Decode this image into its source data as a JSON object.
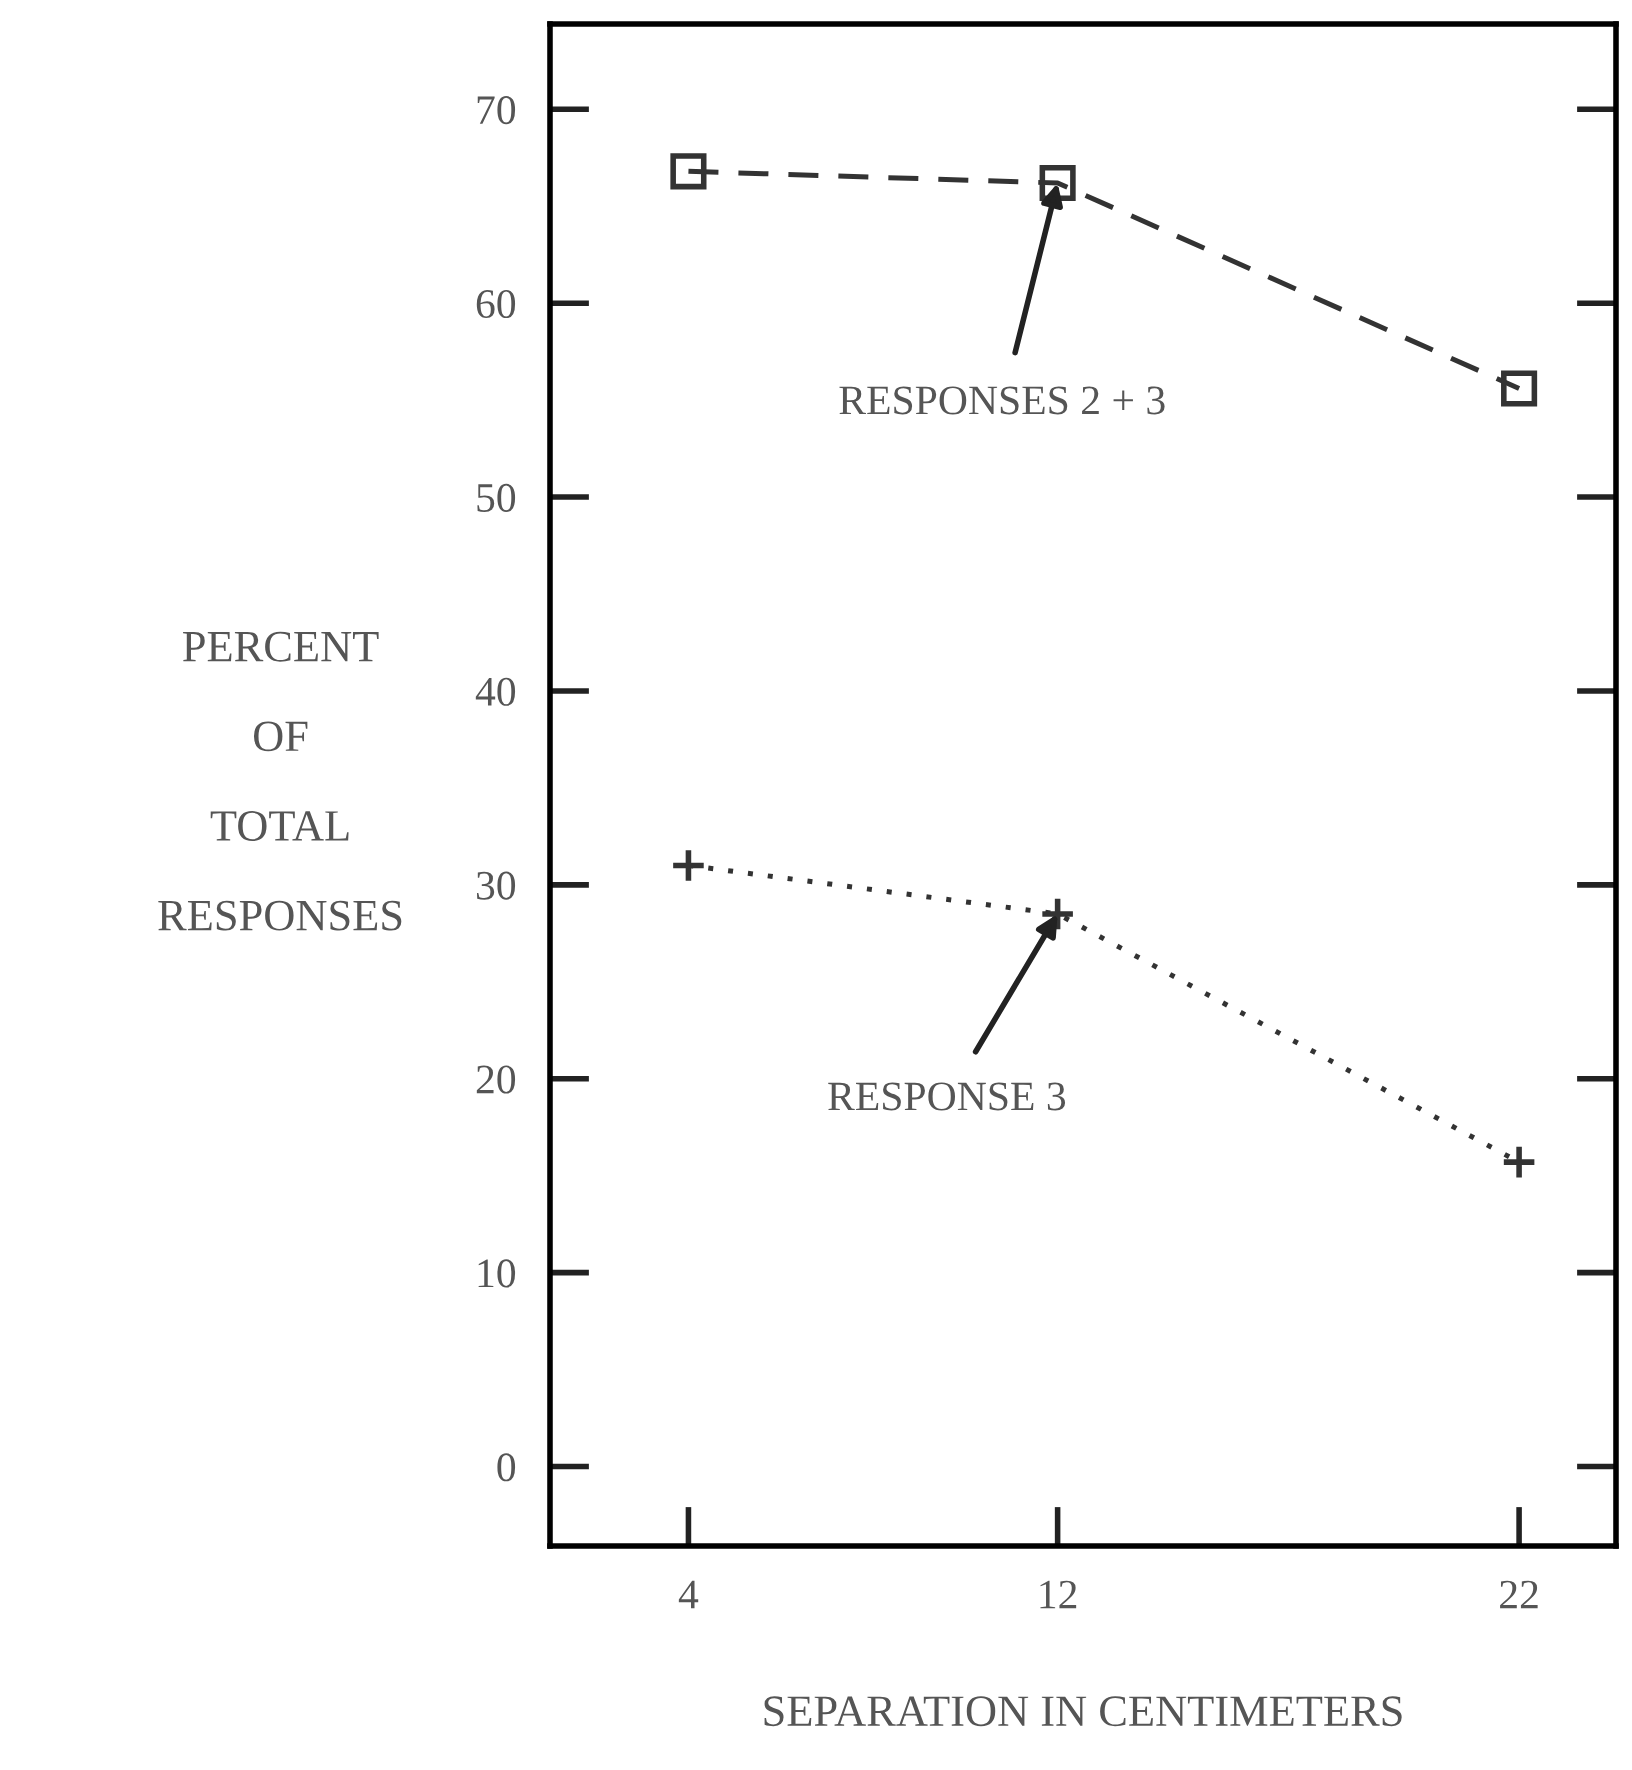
{
  "chart_data": {
    "type": "line",
    "x": [
      4,
      12,
      22
    ],
    "series": [
      {
        "color": "#333333",
        "values": [
          66.8,
          66.2,
          55.6
        ],
        "marker": "square",
        "line_style": "dashed"
      },
      {
        "color": "#333333",
        "values": [
          31,
          28.5,
          15.7
        ],
        "marker": "cross",
        "line_style": "dotted"
      }
    ],
    "xlabel": "SEPARATION IN CENTIMETERS",
    "ylabel": "PERCENT\nOF\nTOTAL\nRESPONSES",
    "xlim": [
      1,
      24.1
    ],
    "ylim": [
      -4.1,
      74.4
    ],
    "xticks": [
      4,
      12,
      22
    ],
    "yticks": [
      0,
      10,
      20,
      30,
      40,
      50,
      60,
      70
    ],
    "grid": false,
    "legend": false,
    "annotations": [
      {
        "text": "RESPONSES 2 + 3",
        "x": 12,
        "y": 66.2
      },
      {
        "text": "RESPONSE 3",
        "x": 12,
        "y": 28.5
      }
    ]
  }
}
